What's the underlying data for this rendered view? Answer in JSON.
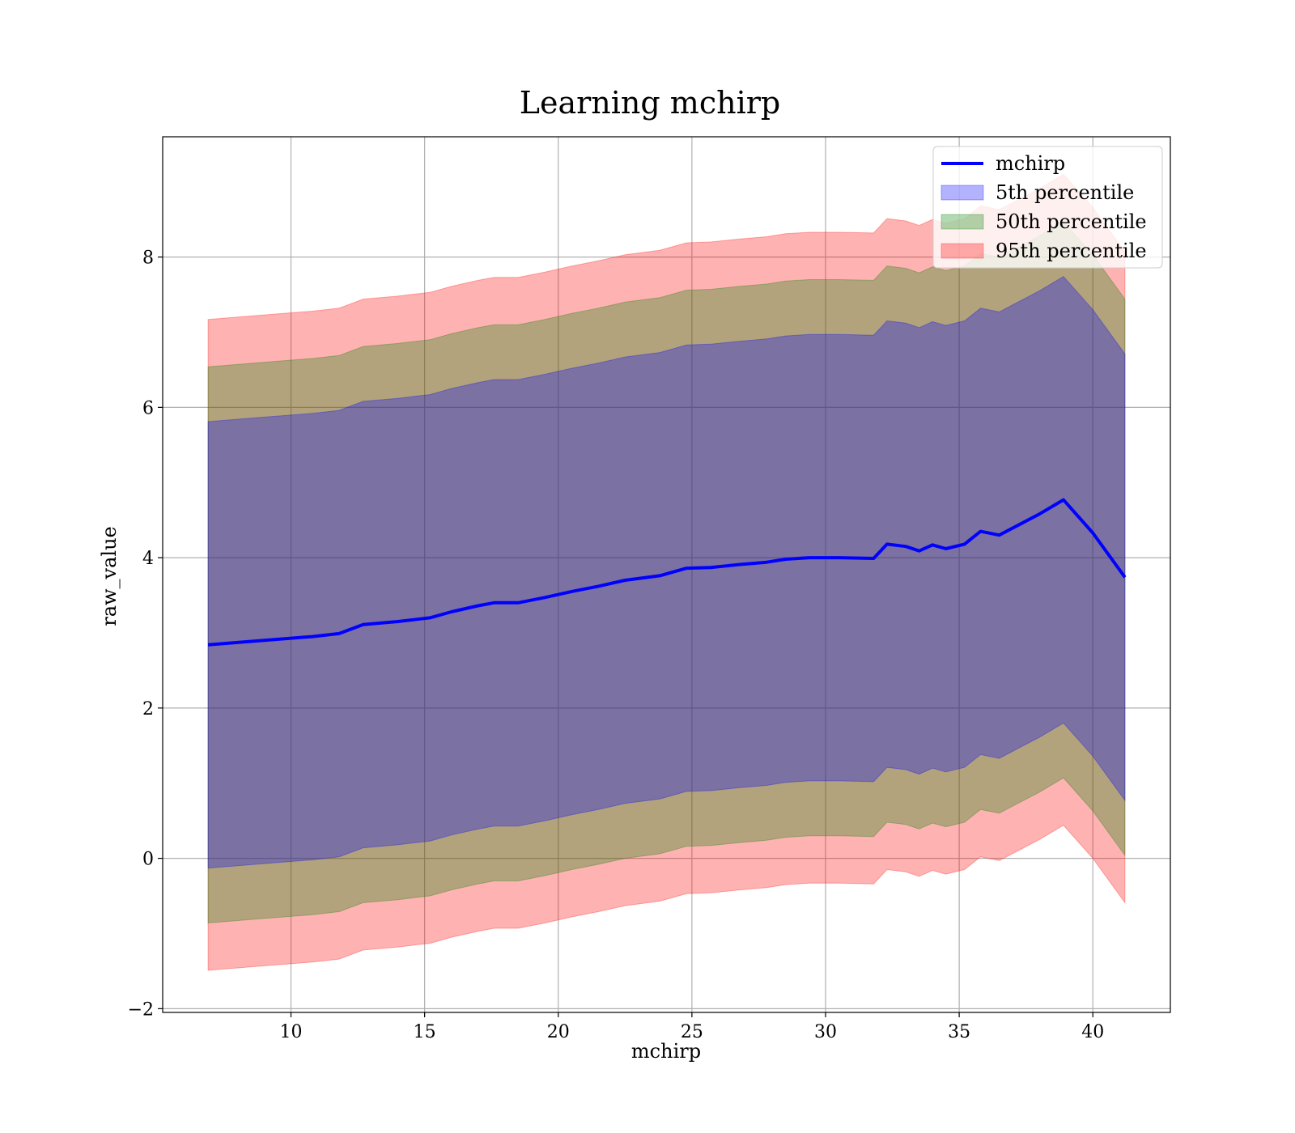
{
  "chart_data": {
    "type": "area",
    "title": "Learning mchirp",
    "xlabel": "mchirp",
    "ylabel": "raw_value",
    "xlim": [
      5.2,
      42.9
    ],
    "ylim": [
      -2.05,
      9.6
    ],
    "xticks": [
      10,
      15,
      20,
      25,
      30,
      35,
      40
    ],
    "yticks": [
      -2,
      0,
      2,
      4,
      6,
      8
    ],
    "grid": true,
    "legend_position": "top-right",
    "x": [
      6.9,
      9.0,
      10.8,
      11.8,
      12.7,
      14.0,
      14.7,
      15.2,
      16.0,
      17.0,
      17.6,
      18.5,
      19.5,
      20.5,
      21.5,
      22.5,
      23.8,
      24.8,
      25.7,
      26.8,
      27.8,
      28.5,
      29.4,
      30.5,
      31.8,
      32.3,
      33.0,
      33.5,
      34.0,
      34.5,
      35.2,
      35.8,
      36.5,
      37.3,
      38.0,
      38.9,
      40.0,
      41.2
    ],
    "series": [
      {
        "name": "mchirp",
        "color": "#0000ff",
        "values": [
          2.84,
          2.9,
          2.95,
          2.99,
          3.11,
          3.15,
          3.18,
          3.2,
          3.28,
          3.36,
          3.4,
          3.4,
          3.47,
          3.55,
          3.62,
          3.7,
          3.76,
          3.86,
          3.87,
          3.91,
          3.94,
          3.98,
          4.0,
          4.0,
          3.99,
          4.18,
          4.15,
          4.09,
          4.17,
          4.12,
          4.18,
          4.35,
          4.3,
          4.45,
          4.58,
          4.77,
          4.33,
          3.74
        ]
      },
      {
        "name": "5th percentile",
        "color": "#0000ff",
        "offset": 2.97
      },
      {
        "name": "50th percentile",
        "color": "#008000",
        "offset": 3.7
      },
      {
        "name": "95th percentile",
        "color": "#ff0000",
        "offset": 4.33
      }
    ]
  }
}
